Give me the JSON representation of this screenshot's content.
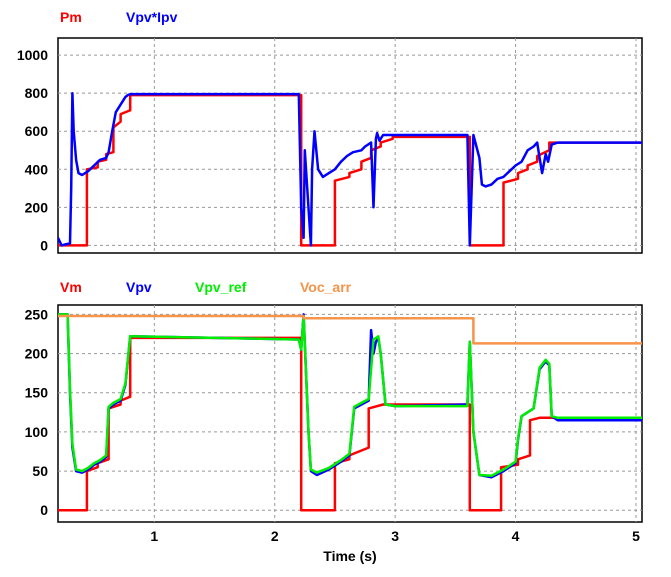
{
  "chart_data": [
    {
      "type": "line",
      "xlim": [
        0.2,
        5.05
      ],
      "ylim": [
        -40,
        1090
      ],
      "yticks": [
        0,
        200,
        400,
        600,
        800,
        1000
      ],
      "xticks": [
        1,
        2,
        3,
        4,
        5
      ],
      "grid": true,
      "legend_placement": "top-left",
      "series": [
        {
          "name": "Pm",
          "color": "#ff0000",
          "x": [
            0.2,
            0.44,
            0.44,
            0.53,
            0.53,
            0.6,
            0.6,
            0.66,
            0.66,
            0.72,
            0.72,
            0.8,
            0.8,
            2.22,
            2.22,
            2.5,
            2.5,
            2.62,
            2.62,
            2.72,
            2.72,
            2.8,
            2.8,
            2.88,
            2.88,
            2.98,
            2.98,
            3.62,
            3.62,
            3.9,
            3.9,
            4.02,
            4.02,
            4.1,
            4.1,
            4.18,
            4.18,
            4.28,
            4.28,
            5.05
          ],
          "y": [
            0,
            0,
            400,
            410,
            440,
            450,
            480,
            490,
            620,
            650,
            690,
            710,
            790,
            790,
            0,
            0,
            340,
            360,
            380,
            400,
            440,
            460,
            500,
            520,
            540,
            560,
            570,
            570,
            0,
            0,
            330,
            350,
            380,
            400,
            420,
            440,
            470,
            500,
            540,
            540
          ]
        },
        {
          "name": "Vpv*Ipv",
          "color": "#0000ff",
          "x": [
            0.2,
            0.23,
            0.26,
            0.3,
            0.31,
            0.32,
            0.33,
            0.35,
            0.37,
            0.4,
            0.45,
            0.5,
            0.55,
            0.6,
            0.62,
            0.65,
            0.68,
            0.7,
            0.72,
            0.74,
            0.76,
            0.78,
            0.8,
            2.2,
            2.22,
            2.24,
            2.25,
            2.3,
            2.31,
            2.33,
            2.36,
            2.4,
            2.45,
            2.5,
            2.55,
            2.6,
            2.65,
            2.72,
            2.75,
            2.8,
            2.82,
            2.84,
            2.85,
            2.87,
            2.9,
            2.95,
            3.0,
            3.6,
            3.62,
            3.65,
            3.7,
            3.72,
            3.75,
            3.8,
            3.85,
            3.9,
            3.95,
            4.0,
            4.05,
            4.1,
            4.15,
            4.18,
            4.2,
            4.22,
            4.25,
            4.27,
            4.3,
            4.35,
            5.05
          ],
          "y": [
            40,
            0,
            5,
            10,
            300,
            800,
            600,
            450,
            380,
            370,
            390,
            420,
            450,
            460,
            490,
            600,
            700,
            720,
            740,
            760,
            780,
            790,
            795,
            795,
            200,
            40,
            500,
            0,
            400,
            600,
            400,
            360,
            380,
            400,
            440,
            470,
            490,
            500,
            520,
            540,
            200,
            560,
            590,
            550,
            580,
            580,
            580,
            580,
            0,
            580,
            460,
            320,
            310,
            320,
            350,
            360,
            390,
            420,
            440,
            500,
            520,
            540,
            460,
            380,
            480,
            440,
            530,
            540,
            540
          ]
        }
      ]
    },
    {
      "type": "line",
      "xlabel": "Time (s)",
      "xlim": [
        0.2,
        5.05
      ],
      "ylim": [
        -15,
        262
      ],
      "yticks": [
        0,
        50,
        100,
        150,
        200,
        250
      ],
      "xticks": [
        1,
        2,
        3,
        4,
        5
      ],
      "grid": true,
      "legend_placement": "top-left",
      "series": [
        {
          "name": "Vm",
          "color": "#ff0000",
          "x": [
            0.2,
            0.44,
            0.44,
            0.53,
            0.53,
            0.62,
            0.62,
            0.72,
            0.72,
            0.8,
            0.8,
            2.22,
            2.22,
            2.5,
            2.5,
            2.62,
            2.62,
            2.78,
            2.78,
            2.9,
            2.9,
            3.62,
            3.62,
            3.88,
            3.88,
            4.02,
            4.02,
            4.12,
            4.12,
            4.2,
            4.2,
            5.05
          ],
          "y": [
            0,
            0,
            50,
            55,
            60,
            65,
            130,
            135,
            140,
            145,
            220,
            220,
            0,
            0,
            60,
            65,
            70,
            80,
            130,
            135,
            135,
            135,
            0,
            0,
            55,
            58,
            65,
            70,
            115,
            118,
            118,
            118
          ]
        },
        {
          "name": "Vpv",
          "color": "#0000ff",
          "x": [
            0.2,
            0.28,
            0.3,
            0.32,
            0.35,
            0.4,
            0.45,
            0.5,
            0.55,
            0.6,
            0.62,
            0.66,
            0.72,
            0.76,
            0.8,
            2.2,
            2.22,
            2.24,
            2.28,
            2.3,
            2.35,
            2.45,
            2.55,
            2.62,
            2.66,
            2.72,
            2.78,
            2.8,
            2.82,
            2.84,
            2.86,
            2.88,
            2.92,
            3.0,
            3.6,
            3.62,
            3.65,
            3.7,
            3.8,
            3.9,
            4.0,
            4.02,
            4.05,
            4.15,
            4.2,
            4.25,
            4.28,
            4.3,
            4.35,
            5.05
          ],
          "y": [
            250,
            250,
            150,
            80,
            50,
            48,
            52,
            58,
            62,
            68,
            130,
            135,
            140,
            160,
            222,
            218,
            205,
            250,
            100,
            50,
            45,
            52,
            62,
            70,
            130,
            135,
            140,
            230,
            200,
            215,
            220,
            200,
            135,
            133,
            135,
            215,
            100,
            45,
            42,
            50,
            60,
            90,
            120,
            130,
            180,
            190,
            185,
            120,
            115,
            115
          ]
        },
        {
          "name": "Vpv_ref",
          "color": "#00ee00",
          "x": [
            0.2,
            0.28,
            0.3,
            0.32,
            0.35,
            0.4,
            0.45,
            0.5,
            0.55,
            0.6,
            0.62,
            0.66,
            0.72,
            0.76,
            0.8,
            2.2,
            2.22,
            2.24,
            2.28,
            2.3,
            2.35,
            2.45,
            2.55,
            2.62,
            2.66,
            2.72,
            2.78,
            2.82,
            2.86,
            2.88,
            2.92,
            3.0,
            3.6,
            3.62,
            3.65,
            3.7,
            3.8,
            3.9,
            4.0,
            4.02,
            4.05,
            4.15,
            4.2,
            4.25,
            4.28,
            4.3,
            4.35,
            5.05
          ],
          "y": [
            250,
            250,
            155,
            85,
            52,
            50,
            54,
            60,
            64,
            70,
            132,
            137,
            142,
            162,
            222,
            218,
            205,
            248,
            100,
            52,
            48,
            54,
            64,
            72,
            132,
            137,
            142,
            218,
            222,
            200,
            135,
            133,
            133,
            215,
            100,
            45,
            44,
            52,
            62,
            92,
            120,
            130,
            182,
            192,
            187,
            120,
            118,
            118
          ]
        },
        {
          "name": "Voc_arr",
          "color": "#f5944a",
          "x": [
            0.2,
            2.24,
            2.24,
            3.65,
            3.65,
            5.05
          ],
          "y": [
            248,
            248,
            245,
            245,
            213,
            213
          ]
        }
      ]
    }
  ]
}
